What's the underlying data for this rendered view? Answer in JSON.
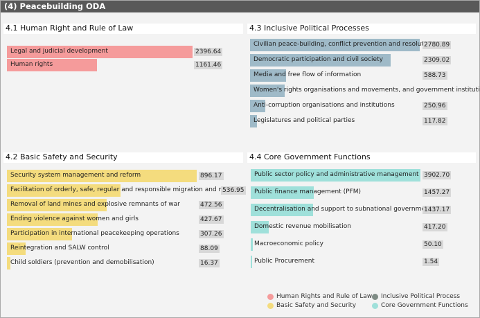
{
  "title": "(4) Peacebuilding ODA",
  "colors": {
    "human_rights": "#f59b9b",
    "inclusive_political": "#9fbac8",
    "basic_safety": "#f4dc7e",
    "core_government": "#9fe0da"
  },
  "legend": [
    {
      "label": "Human Rights and Rule of Law",
      "color": "#f59b9b"
    },
    {
      "label": "Inclusive Political Process",
      "color": "#7f8c85"
    },
    {
      "label": "Basic Safety and Security",
      "color": "#f4dc7e"
    },
    {
      "label": "Core Government Functions",
      "color": "#9fe0da"
    }
  ],
  "chart_data": [
    {
      "type": "bar",
      "title": "4.1 Human Right and Rule of Law",
      "color": "#f59b9b",
      "categories": [
        "Legal and judicial development",
        "Human rights"
      ],
      "values": [
        2396.64,
        1161.46
      ],
      "labels": [
        "2396.64",
        "1161.46"
      ]
    },
    {
      "type": "bar",
      "title": "4.3 Inclusive Political Processes",
      "color": "#9fbac8",
      "categories": [
        "Civilian peace-building, conflict prevention and resolution",
        "Democratic participation and civil society",
        "Media and free flow of information",
        "Women's rights organisations and movements, and government institutions",
        "Anti-corruption organisations and institutions",
        "Legislatures and political parties"
      ],
      "values": [
        2780.89,
        2309.02,
        588.73,
        571.0,
        250.96,
        117.82
      ],
      "labels": [
        "2780.89",
        "2309.02",
        "588.73",
        "",
        "250.96",
        "117.82"
      ]
    },
    {
      "type": "bar",
      "title": "4.2 Basic Safety and Security",
      "color": "#f4dc7e",
      "categories": [
        "Security system management and reform",
        "Facilitation of orderly, safe, regular and responsible migration and mobili",
        "Removal of land mines and explosive remnants of war",
        "Ending violence against women and girls",
        "Participation in international peacekeeping operations",
        "Reintegration and SALW control",
        "Child soldiers (prevention and demobilisation)"
      ],
      "values": [
        896.17,
        536.95,
        472.56,
        427.67,
        307.26,
        88.09,
        16.37
      ],
      "labels": [
        "896.17",
        "536.95",
        "472.56",
        "427.67",
        "307.26",
        "88.09",
        "16.37"
      ]
    },
    {
      "type": "bar",
      "title": "4.4 Core Government Functions",
      "color": "#9fe0da",
      "categories": [
        "Public sector policy and administrative management",
        "Public finance management (PFM)",
        "Decentralisation and support to subnational government",
        "Domestic revenue mobilisation",
        "Macroeconomic policy",
        "Public Procurement"
      ],
      "values": [
        3902.7,
        1457.27,
        1437.17,
        417.2,
        50.1,
        1.54
      ],
      "labels": [
        "3902.70",
        "1457.27",
        "1437.17",
        "417.20",
        "50.10",
        "1.54"
      ]
    }
  ]
}
